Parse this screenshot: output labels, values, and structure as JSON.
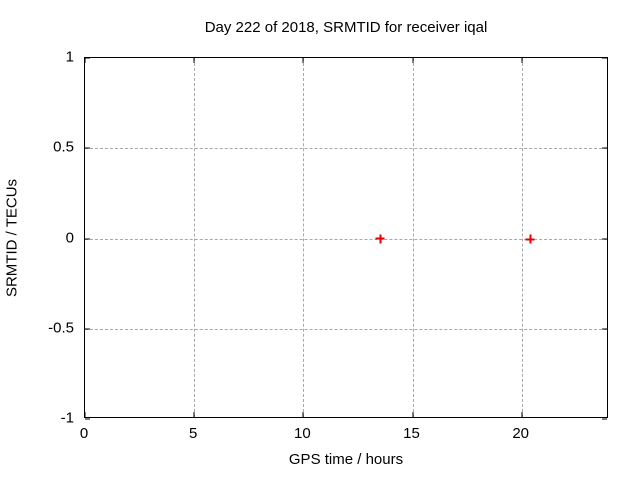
{
  "chart_data": {
    "type": "scatter",
    "title": "Day 222 of 2018, SRMTID for receiver iqal",
    "xlabel": "GPS time / hours",
    "ylabel": "SRMTID / TECUs",
    "xlim": [
      0,
      24
    ],
    "ylim": [
      -1,
      1
    ],
    "xticks": [
      0,
      5,
      10,
      15,
      20
    ],
    "yticks": [
      -1,
      -0.5,
      0,
      0.5,
      1
    ],
    "grid": true,
    "legend": "none",
    "series": [
      {
        "name": "SRMTID",
        "marker": "plus",
        "color": "#e60000",
        "points": [
          {
            "x": 13.53,
            "y": 0.0
          },
          {
            "x": 20.4,
            "y": -0.005
          }
        ]
      }
    ],
    "colors": {
      "background": "#ffffff",
      "axis": "#000000",
      "grid": "#a8a8a8",
      "text": "#000000"
    }
  }
}
